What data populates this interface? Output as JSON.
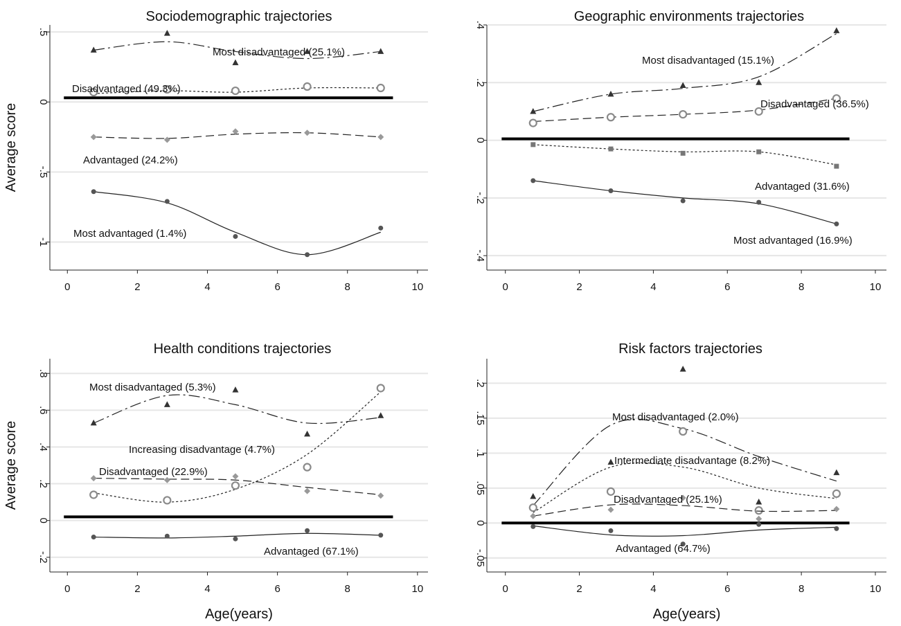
{
  "figure": {
    "x_axis_title": "Age(years)",
    "y_axis_title": "Average score"
  },
  "chart_data": [
    {
      "type": "line",
      "title": "Sociodemographic trajectories",
      "ylabel": "Average score",
      "xlabel": "",
      "xlim": [
        -0.5,
        10.3
      ],
      "ylim": [
        -1.2,
        0.55
      ],
      "x_ticks": [
        0,
        2,
        4,
        6,
        8,
        10
      ],
      "x_tick_labels": [
        "0",
        "2",
        "4",
        "6",
        "8",
        "10"
      ],
      "y_ticks": [
        0.5,
        0,
        -0.5,
        -1
      ],
      "y_tick_labels": [
        ".5",
        "0",
        "-.5",
        "-1"
      ],
      "grid": true,
      "reference_line": 0.03,
      "series": [
        {
          "name": "Most disadvantaged (25.1%)",
          "marker": "triangle",
          "line_style": "dashdot",
          "x": [
            0.75,
            2.85,
            4.8,
            6.85,
            8.95
          ],
          "y": [
            0.37,
            0.49,
            0.28,
            0.36,
            0.36
          ],
          "fit": [
            0.37,
            0.43,
            0.36,
            0.31,
            0.36
          ]
        },
        {
          "name": "Disadvantaged (49.3%)",
          "marker": "hollow-circle",
          "line_style": "dotted",
          "x": [
            0.75,
            2.85,
            4.8,
            6.85,
            8.95
          ],
          "y": [
            0.07,
            0.09,
            0.08,
            0.11,
            0.1
          ],
          "fit": [
            0.06,
            0.08,
            0.07,
            0.1,
            0.1
          ]
        },
        {
          "name": "Advantaged (24.2%)",
          "marker": "diamond",
          "line_style": "dashed",
          "x": [
            0.75,
            2.85,
            4.8,
            6.85,
            8.95
          ],
          "y": [
            -0.25,
            -0.27,
            -0.21,
            -0.22,
            -0.25
          ],
          "fit": [
            -0.25,
            -0.26,
            -0.23,
            -0.22,
            -0.25
          ]
        },
        {
          "name": "Most advantaged (1.4%)",
          "marker": "dot",
          "line_style": "solid",
          "x": [
            0.75,
            2.85,
            4.8,
            6.85,
            8.95
          ],
          "y": [
            -0.64,
            -0.71,
            -0.96,
            -1.09,
            -0.9
          ],
          "fit": [
            -0.64,
            -0.72,
            -0.93,
            -1.09,
            -0.93
          ]
        }
      ]
    },
    {
      "type": "line",
      "title": "Geographic environments trajectories",
      "ylabel": "",
      "xlabel": "",
      "xlim": [
        -0.5,
        10.3
      ],
      "ylim": [
        -0.45,
        0.4
      ],
      "x_ticks": [
        0,
        2,
        4,
        6,
        8,
        10
      ],
      "x_tick_labels": [
        "0",
        "2",
        "4",
        "6",
        "8",
        "10"
      ],
      "y_ticks": [
        0.4,
        0.2,
        0,
        -0.2,
        -0.4
      ],
      "y_tick_labels": [
        ".4",
        ".2",
        "0",
        "-.2",
        "-.4"
      ],
      "grid": true,
      "reference_line": 0.005,
      "series": [
        {
          "name": "Most disadvantaged (15.1%)",
          "marker": "triangle",
          "line_style": "dashdot",
          "x": [
            0.75,
            2.85,
            4.8,
            6.85,
            8.95
          ],
          "y": [
            0.1,
            0.16,
            0.19,
            0.2,
            0.38
          ],
          "fit": [
            0.1,
            0.16,
            0.18,
            0.22,
            0.37
          ]
        },
        {
          "name": "Disadvantaged (36.5%)",
          "marker": "hollow-circle",
          "line_style": "dashed",
          "x": [
            0.75,
            2.85,
            4.8,
            6.85,
            8.95
          ],
          "y": [
            0.06,
            0.08,
            0.09,
            0.1,
            0.145
          ],
          "fit": [
            0.065,
            0.08,
            0.09,
            0.105,
            0.145
          ]
        },
        {
          "name": "Advantaged (31.6%)",
          "marker": "square",
          "line_style": "dotted",
          "x": [
            0.75,
            2.85,
            4.8,
            6.85,
            8.95
          ],
          "y": [
            -0.015,
            -0.03,
            -0.045,
            -0.04,
            -0.09
          ],
          "fit": [
            -0.015,
            -0.03,
            -0.04,
            -0.04,
            -0.085
          ]
        },
        {
          "name": "Most advantaged (16.9%)",
          "marker": "dot",
          "line_style": "solid",
          "x": [
            0.75,
            2.85,
            4.8,
            6.85,
            8.95
          ],
          "y": [
            -0.14,
            -0.175,
            -0.21,
            -0.215,
            -0.29
          ],
          "fit": [
            -0.14,
            -0.175,
            -0.2,
            -0.22,
            -0.29
          ]
        }
      ]
    },
    {
      "type": "line",
      "title": "Health conditions trajectories",
      "ylabel": "Average score",
      "xlabel": "Age(years)",
      "xlim": [
        -0.5,
        10.3
      ],
      "ylim": [
        -0.28,
        0.88
      ],
      "x_ticks": [
        0,
        2,
        4,
        6,
        8,
        10
      ],
      "x_tick_labels": [
        "0",
        "2",
        "4",
        "6",
        "8",
        "10"
      ],
      "y_ticks": [
        0.8,
        0.6,
        0.4,
        0.2,
        0,
        -0.2
      ],
      "y_tick_labels": [
        ".8",
        ".6",
        ".4",
        ".2",
        "0",
        "-.2"
      ],
      "grid": true,
      "reference_line": 0.02,
      "series": [
        {
          "name": "Most disadvantaged (5.3%)",
          "marker": "triangle",
          "line_style": "dashdot",
          "x": [
            0.75,
            2.85,
            4.8,
            6.85,
            8.95
          ],
          "y": [
            0.53,
            0.63,
            0.71,
            0.47,
            0.57
          ],
          "fit": [
            0.53,
            0.68,
            0.63,
            0.53,
            0.56
          ]
        },
        {
          "name": "Increasing disadvantage (4.7%)",
          "marker": "hollow-circle",
          "line_style": "dotted",
          "x": [
            0.75,
            2.85,
            4.8,
            6.85,
            8.95
          ],
          "y": [
            0.14,
            0.11,
            0.19,
            0.29,
            0.72
          ],
          "fit": [
            0.15,
            0.1,
            0.17,
            0.36,
            0.7
          ]
        },
        {
          "name": "Disadvantaged (22.9%)",
          "marker": "diamond",
          "line_style": "dashed",
          "x": [
            0.75,
            2.85,
            4.8,
            6.85,
            8.95
          ],
          "y": [
            0.23,
            0.22,
            0.24,
            0.16,
            0.135
          ],
          "fit": [
            0.23,
            0.225,
            0.22,
            0.18,
            0.14
          ]
        },
        {
          "name": "Advantaged (67.1%)",
          "marker": "dot",
          "line_style": "solid",
          "x": [
            0.75,
            2.85,
            4.8,
            6.85,
            8.95
          ],
          "y": [
            -0.09,
            -0.085,
            -0.1,
            -0.055,
            -0.08
          ],
          "fit": [
            -0.09,
            -0.095,
            -0.085,
            -0.07,
            -0.08
          ]
        }
      ]
    },
    {
      "type": "line",
      "title": "Risk factors trajectories",
      "ylabel": "",
      "xlabel": "Age(years)",
      "xlim": [
        -0.5,
        10.3
      ],
      "ylim": [
        -0.07,
        0.235
      ],
      "x_ticks": [
        0,
        2,
        4,
        6,
        8,
        10
      ],
      "x_tick_labels": [
        "0",
        "2",
        "4",
        "6",
        "8",
        "10"
      ],
      "y_ticks": [
        0.2,
        0.15,
        0.1,
        0.05,
        0,
        -0.05
      ],
      "y_tick_labels": [
        ".2",
        ".15",
        ".1",
        ".05",
        "0",
        "-.05"
      ],
      "grid": true,
      "reference_line": 0.0,
      "series": [
        {
          "name": "Most disadvantaged (2.0%)",
          "marker": "triangle",
          "line_style": "dashdot",
          "x": [
            0.75,
            2.85,
            4.8,
            6.85,
            8.95
          ],
          "y": [
            0.038,
            0.087,
            0.22,
            0.03,
            0.072
          ],
          "fit": [
            0.025,
            0.14,
            0.135,
            0.095,
            0.06
          ]
        },
        {
          "name": "Intermediate disadvantage (8.2%)",
          "marker": "hollow-circle",
          "line_style": "dotted",
          "x": [
            0.75,
            2.85,
            4.8,
            6.85,
            8.95
          ],
          "y": [
            0.022,
            0.045,
            0.131,
            0.018,
            0.042
          ],
          "fit": [
            0.015,
            0.08,
            0.08,
            0.05,
            0.035
          ]
        },
        {
          "name": "Disadvantaged (25.1%)",
          "marker": "diamond",
          "line_style": "dashed",
          "x": [
            0.75,
            2.85,
            4.8,
            6.85,
            8.95
          ],
          "y": [
            0.01,
            0.019,
            0.036,
            0.006,
            0.02
          ],
          "fit": [
            0.01,
            0.026,
            0.025,
            0.017,
            0.018
          ]
        },
        {
          "name": "Advantaged (64.7%)",
          "marker": "dot",
          "line_style": "solid",
          "x": [
            0.75,
            2.85,
            4.8,
            6.85,
            8.95
          ],
          "y": [
            -0.005,
            -0.011,
            -0.03,
            -0.002,
            -0.008
          ],
          "fit": [
            -0.004,
            -0.017,
            -0.018,
            -0.01,
            -0.006
          ]
        }
      ]
    }
  ]
}
